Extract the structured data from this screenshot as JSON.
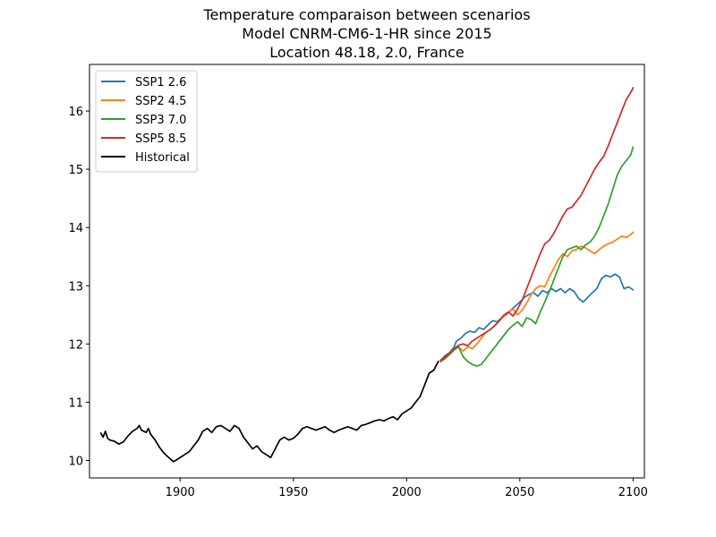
{
  "chart_data": {
    "type": "line",
    "title_lines": [
      "Temperature comparaison between scenarios",
      "Model CNRM-CM6-1-HR since 2015",
      "Location 48.18, 2.0, France"
    ],
    "xlabel": "",
    "ylabel": "",
    "xlim": [
      1860,
      2105
    ],
    "ylim": [
      9.7,
      16.8
    ],
    "xticks": [
      1900,
      1950,
      2000,
      2050,
      2100
    ],
    "yticks": [
      10,
      11,
      12,
      13,
      14,
      15,
      16
    ],
    "grid": false,
    "legend_position": "top-left",
    "series": [
      {
        "name": "SSP1 2.6",
        "color": "#1f77b4",
        "points": [
          [
            2015,
            11.72
          ],
          [
            2017,
            11.8
          ],
          [
            2019,
            11.85
          ],
          [
            2021,
            11.95
          ],
          [
            2022,
            12.05
          ],
          [
            2024,
            12.1
          ],
          [
            2026,
            12.18
          ],
          [
            2028,
            12.22
          ],
          [
            2030,
            12.2
          ],
          [
            2032,
            12.28
          ],
          [
            2034,
            12.25
          ],
          [
            2036,
            12.33
          ],
          [
            2038,
            12.4
          ],
          [
            2040,
            12.38
          ],
          [
            2042,
            12.45
          ],
          [
            2044,
            12.5
          ],
          [
            2046,
            12.58
          ],
          [
            2048,
            12.65
          ],
          [
            2050,
            12.72
          ],
          [
            2052,
            12.8
          ],
          [
            2054,
            12.85
          ],
          [
            2056,
            12.88
          ],
          [
            2058,
            12.82
          ],
          [
            2060,
            12.92
          ],
          [
            2062,
            12.88
          ],
          [
            2064,
            12.95
          ],
          [
            2066,
            12.9
          ],
          [
            2068,
            12.95
          ],
          [
            2070,
            12.88
          ],
          [
            2072,
            12.95
          ],
          [
            2074,
            12.9
          ],
          [
            2076,
            12.78
          ],
          [
            2078,
            12.72
          ],
          [
            2080,
            12.8
          ],
          [
            2082,
            12.88
          ],
          [
            2084,
            12.95
          ],
          [
            2086,
            13.12
          ],
          [
            2088,
            13.18
          ],
          [
            2090,
            13.15
          ],
          [
            2092,
            13.2
          ],
          [
            2094,
            13.15
          ],
          [
            2096,
            12.95
          ],
          [
            2098,
            12.98
          ],
          [
            2100,
            12.93
          ]
        ]
      },
      {
        "name": "SSP2 4.5",
        "color": "#ff7f0e",
        "points": [
          [
            2015,
            11.7
          ],
          [
            2017,
            11.78
          ],
          [
            2019,
            11.82
          ],
          [
            2021,
            11.9
          ],
          [
            2023,
            11.95
          ],
          [
            2025,
            11.88
          ],
          [
            2027,
            11.95
          ],
          [
            2029,
            11.92
          ],
          [
            2031,
            12.0
          ],
          [
            2033,
            12.1
          ],
          [
            2035,
            12.2
          ],
          [
            2037,
            12.25
          ],
          [
            2039,
            12.32
          ],
          [
            2041,
            12.4
          ],
          [
            2043,
            12.48
          ],
          [
            2045,
            12.55
          ],
          [
            2047,
            12.6
          ],
          [
            2049,
            12.5
          ],
          [
            2051,
            12.58
          ],
          [
            2053,
            12.7
          ],
          [
            2055,
            12.85
          ],
          [
            2057,
            12.95
          ],
          [
            2059,
            13.0
          ],
          [
            2061,
            12.98
          ],
          [
            2063,
            13.15
          ],
          [
            2065,
            13.3
          ],
          [
            2067,
            13.45
          ],
          [
            2069,
            13.55
          ],
          [
            2071,
            13.5
          ],
          [
            2073,
            13.6
          ],
          [
            2075,
            13.62
          ],
          [
            2077,
            13.68
          ],
          [
            2079,
            13.65
          ],
          [
            2081,
            13.6
          ],
          [
            2083,
            13.55
          ],
          [
            2085,
            13.62
          ],
          [
            2087,
            13.68
          ],
          [
            2089,
            13.72
          ],
          [
            2091,
            13.75
          ],
          [
            2093,
            13.8
          ],
          [
            2095,
            13.85
          ],
          [
            2097,
            13.83
          ],
          [
            2099,
            13.88
          ],
          [
            2100,
            13.92
          ]
        ]
      },
      {
        "name": "SSP3 7.0",
        "color": "#2ca02c",
        "points": [
          [
            2015,
            11.7
          ],
          [
            2017,
            11.75
          ],
          [
            2019,
            11.82
          ],
          [
            2021,
            11.9
          ],
          [
            2023,
            11.95
          ],
          [
            2025,
            11.78
          ],
          [
            2027,
            11.7
          ],
          [
            2029,
            11.65
          ],
          [
            2031,
            11.62
          ],
          [
            2033,
            11.65
          ],
          [
            2035,
            11.75
          ],
          [
            2037,
            11.85
          ],
          [
            2039,
            11.95
          ],
          [
            2041,
            12.05
          ],
          [
            2043,
            12.15
          ],
          [
            2045,
            12.25
          ],
          [
            2047,
            12.32
          ],
          [
            2049,
            12.38
          ],
          [
            2051,
            12.3
          ],
          [
            2053,
            12.45
          ],
          [
            2055,
            12.42
          ],
          [
            2057,
            12.35
          ],
          [
            2059,
            12.55
          ],
          [
            2061,
            12.72
          ],
          [
            2063,
            12.9
          ],
          [
            2065,
            13.1
          ],
          [
            2067,
            13.3
          ],
          [
            2069,
            13.5
          ],
          [
            2071,
            13.62
          ],
          [
            2073,
            13.65
          ],
          [
            2075,
            13.68
          ],
          [
            2077,
            13.62
          ],
          [
            2079,
            13.7
          ],
          [
            2081,
            13.75
          ],
          [
            2083,
            13.85
          ],
          [
            2085,
            14.0
          ],
          [
            2087,
            14.2
          ],
          [
            2089,
            14.4
          ],
          [
            2091,
            14.65
          ],
          [
            2093,
            14.9
          ],
          [
            2095,
            15.05
          ],
          [
            2097,
            15.15
          ],
          [
            2099,
            15.25
          ],
          [
            2100,
            15.38
          ]
        ]
      },
      {
        "name": "SSP5 8.5",
        "color": "#d62728",
        "points": [
          [
            2015,
            11.7
          ],
          [
            2017,
            11.78
          ],
          [
            2019,
            11.85
          ],
          [
            2021,
            11.92
          ],
          [
            2023,
            11.98
          ],
          [
            2025,
            12.0
          ],
          [
            2027,
            11.97
          ],
          [
            2029,
            12.05
          ],
          [
            2031,
            12.1
          ],
          [
            2033,
            12.15
          ],
          [
            2035,
            12.2
          ],
          [
            2037,
            12.25
          ],
          [
            2039,
            12.32
          ],
          [
            2041,
            12.4
          ],
          [
            2043,
            12.5
          ],
          [
            2045,
            12.55
          ],
          [
            2047,
            12.48
          ],
          [
            2049,
            12.6
          ],
          [
            2051,
            12.75
          ],
          [
            2053,
            12.95
          ],
          [
            2055,
            13.15
          ],
          [
            2057,
            13.35
          ],
          [
            2059,
            13.55
          ],
          [
            2061,
            13.72
          ],
          [
            2063,
            13.78
          ],
          [
            2065,
            13.9
          ],
          [
            2067,
            14.05
          ],
          [
            2069,
            14.2
          ],
          [
            2071,
            14.32
          ],
          [
            2073,
            14.35
          ],
          [
            2075,
            14.45
          ],
          [
            2077,
            14.55
          ],
          [
            2079,
            14.7
          ],
          [
            2081,
            14.85
          ],
          [
            2083,
            15.0
          ],
          [
            2085,
            15.12
          ],
          [
            2087,
            15.22
          ],
          [
            2089,
            15.4
          ],
          [
            2091,
            15.6
          ],
          [
            2093,
            15.8
          ],
          [
            2095,
            16.0
          ],
          [
            2097,
            16.2
          ],
          [
            2099,
            16.32
          ],
          [
            2100,
            16.4
          ]
        ]
      },
      {
        "name": "Historical",
        "color": "#000000",
        "points": [
          [
            1865,
            10.47
          ],
          [
            1866,
            10.4
          ],
          [
            1867,
            10.5
          ],
          [
            1868,
            10.38
          ],
          [
            1869,
            10.35
          ],
          [
            1871,
            10.33
          ],
          [
            1873,
            10.28
          ],
          [
            1875,
            10.32
          ],
          [
            1877,
            10.42
          ],
          [
            1879,
            10.5
          ],
          [
            1881,
            10.55
          ],
          [
            1882,
            10.6
          ],
          [
            1883,
            10.52
          ],
          [
            1885,
            10.48
          ],
          [
            1886,
            10.55
          ],
          [
            1887,
            10.45
          ],
          [
            1889,
            10.35
          ],
          [
            1891,
            10.22
          ],
          [
            1893,
            10.12
          ],
          [
            1895,
            10.05
          ],
          [
            1897,
            9.98
          ],
          [
            1898,
            10.0
          ],
          [
            1900,
            10.05
          ],
          [
            1902,
            10.1
          ],
          [
            1904,
            10.15
          ],
          [
            1906,
            10.25
          ],
          [
            1908,
            10.35
          ],
          [
            1910,
            10.5
          ],
          [
            1912,
            10.55
          ],
          [
            1914,
            10.48
          ],
          [
            1916,
            10.58
          ],
          [
            1918,
            10.6
          ],
          [
            1920,
            10.55
          ],
          [
            1922,
            10.5
          ],
          [
            1924,
            10.6
          ],
          [
            1926,
            10.55
          ],
          [
            1928,
            10.4
          ],
          [
            1930,
            10.3
          ],
          [
            1932,
            10.2
          ],
          [
            1934,
            10.25
          ],
          [
            1936,
            10.15
          ],
          [
            1938,
            10.1
          ],
          [
            1940,
            10.05
          ],
          [
            1942,
            10.2
          ],
          [
            1944,
            10.35
          ],
          [
            1946,
            10.4
          ],
          [
            1948,
            10.35
          ],
          [
            1950,
            10.38
          ],
          [
            1952,
            10.45
          ],
          [
            1954,
            10.55
          ],
          [
            1956,
            10.58
          ],
          [
            1958,
            10.55
          ],
          [
            1960,
            10.52
          ],
          [
            1962,
            10.55
          ],
          [
            1964,
            10.58
          ],
          [
            1966,
            10.52
          ],
          [
            1968,
            10.48
          ],
          [
            1970,
            10.52
          ],
          [
            1972,
            10.55
          ],
          [
            1974,
            10.58
          ],
          [
            1976,
            10.55
          ],
          [
            1978,
            10.52
          ],
          [
            1980,
            10.6
          ],
          [
            1982,
            10.62
          ],
          [
            1984,
            10.65
          ],
          [
            1986,
            10.68
          ],
          [
            1988,
            10.7
          ],
          [
            1990,
            10.68
          ],
          [
            1992,
            10.72
          ],
          [
            1994,
            10.75
          ],
          [
            1996,
            10.7
          ],
          [
            1998,
            10.8
          ],
          [
            2000,
            10.85
          ],
          [
            2002,
            10.9
          ],
          [
            2004,
            11.0
          ],
          [
            2006,
            11.1
          ],
          [
            2008,
            11.3
          ],
          [
            2010,
            11.5
          ],
          [
            2012,
            11.55
          ],
          [
            2014,
            11.7
          ]
        ]
      }
    ]
  }
}
